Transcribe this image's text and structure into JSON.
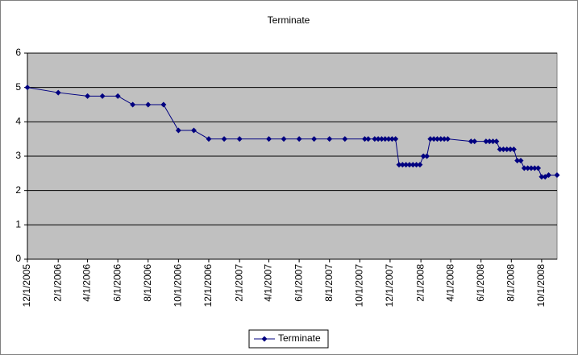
{
  "chart_data": {
    "type": "line",
    "title": "Terminate",
    "x": [
      "12/1/2005",
      "2/1/2006",
      "4/1/2006",
      "5/1/2006",
      "6/1/2006",
      "7/1/2006",
      "8/1/2006",
      "9/1/2006",
      "10/1/2006",
      "11/1/2006",
      "12/1/2006",
      "1/1/2007",
      "2/1/2007",
      "4/1/2007",
      "5/1/2007",
      "6/1/2007",
      "7/1/2007",
      "8/1/2007",
      "9/1/2007",
      "10/11/2007",
      "10/18/2007",
      "10/31/2007",
      "11/7/2007",
      "11/14/2007",
      "11/21/2007",
      "11/28/2007",
      "12/5/2007",
      "12/12/2007",
      "12/19/2007",
      "12/26/2007",
      "1/2/2008",
      "1/9/2008",
      "1/16/2008",
      "1/23/2008",
      "1/30/2008",
      "2/6/2008",
      "2/13/2008",
      "2/20/2008",
      "2/27/2008",
      "3/5/2008",
      "3/12/2008",
      "3/19/2008",
      "3/26/2008",
      "5/12/2008",
      "5/19/2008",
      "6/11/2008",
      "6/18/2008",
      "6/25/2008",
      "7/2/2008",
      "7/9/2008",
      "7/16/2008",
      "7/23/2008",
      "7/30/2008",
      "8/6/2008",
      "8/13/2008",
      "8/20/2008",
      "8/27/2008",
      "9/3/2008",
      "9/10/2008",
      "9/17/2008",
      "9/24/2008",
      "10/1/2008",
      "10/8/2008",
      "10/15/2008",
      "11/1/2008"
    ],
    "series": [
      {
        "name": "Terminate",
        "color": "#000080",
        "values": [
          5.0,
          4.85,
          4.75,
          4.75,
          4.75,
          4.5,
          4.5,
          4.5,
          3.75,
          3.75,
          3.5,
          3.5,
          3.5,
          3.5,
          3.5,
          3.5,
          3.5,
          3.5,
          3.5,
          3.5,
          3.5,
          3.5,
          3.5,
          3.5,
          3.5,
          3.5,
          3.5,
          3.5,
          2.75,
          2.75,
          2.75,
          2.75,
          2.75,
          2.75,
          2.75,
          3.0,
          3.0,
          3.5,
          3.5,
          3.5,
          3.5,
          3.5,
          3.5,
          3.43,
          3.43,
          3.43,
          3.43,
          3.43,
          3.43,
          3.2,
          3.2,
          3.2,
          3.2,
          3.2,
          2.87,
          2.87,
          2.65,
          2.65,
          2.65,
          2.65,
          2.65,
          2.4,
          2.4,
          2.45,
          2.45
        ]
      }
    ],
    "xlim": [
      "12/1/2005",
      "11/1/2008"
    ],
    "xticks": [
      "12/1/2005",
      "2/1/2006",
      "4/1/2006",
      "6/1/2006",
      "8/1/2006",
      "10/1/2006",
      "12/1/2006",
      "2/1/2007",
      "4/1/2007",
      "6/1/2007",
      "8/1/2007",
      "10/1/2007",
      "12/1/2007",
      "2/1/2008",
      "4/1/2008",
      "6/1/2008",
      "8/1/2008",
      "10/1/2008"
    ],
    "ylim": [
      0,
      6
    ],
    "yticks": [
      0,
      1,
      2,
      3,
      4,
      5,
      6
    ],
    "grid": true,
    "legend": "bottom"
  }
}
